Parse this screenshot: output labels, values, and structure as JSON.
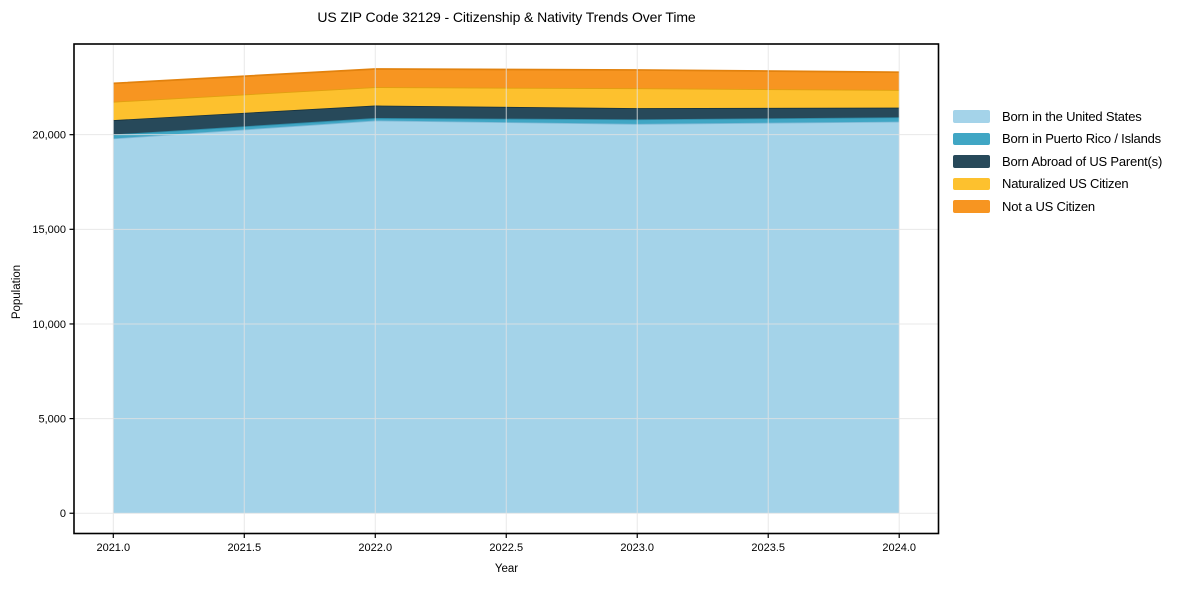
{
  "chart_data": {
    "type": "area",
    "stacked": true,
    "title": "US ZIP Code 32129 - Citizenship & Nativity Trends Over Time",
    "xlabel": "Year",
    "ylabel": "Population",
    "x": [
      2021,
      2022,
      2023,
      2024
    ],
    "series": [
      {
        "name": "Born in the United States",
        "values": [
          19800,
          20750,
          20570,
          20690
        ],
        "color": "#a4d3e9",
        "edge": "#7db9d6"
      },
      {
        "name": "Born in Puerto Rico / Islands",
        "values": [
          210,
          130,
          240,
          230
        ],
        "color": "#40a6c4",
        "edge": "#2d8aa6"
      },
      {
        "name": "Born Abroad of US Parent(s)",
        "values": [
          760,
          660,
          590,
          510
        ],
        "color": "#27495a",
        "edge": "#16323f"
      },
      {
        "name": "Naturalized US Citizen",
        "values": [
          970,
          970,
          1050,
          930
        ],
        "color": "#fdc12e",
        "edge": "#e0a010"
      },
      {
        "name": "Not a US Citizen",
        "values": [
          970,
          960,
          970,
          940
        ],
        "color": "#f79521",
        "edge": "#e2820e"
      }
    ],
    "xticks": [
      2021.0,
      2021.5,
      2022.0,
      2022.5,
      2023.0,
      2023.5,
      2024.0
    ],
    "xtick_labels": [
      "2021.0",
      "2021.5",
      "2022.0",
      "2022.5",
      "2023.0",
      "2023.5",
      "2024.0"
    ],
    "yticks": [
      0,
      5000,
      10000,
      15000,
      20000
    ],
    "ytick_labels": [
      "0",
      "5,000",
      "10,000",
      "15,000",
      "20,000"
    ],
    "xlim": [
      2020.85,
      2024.15
    ],
    "ylim": [
      -1070,
      24790
    ],
    "grid": true,
    "grid_color": "#e3e3e3",
    "frame_color": "#000000",
    "legend_position": "right outside"
  }
}
